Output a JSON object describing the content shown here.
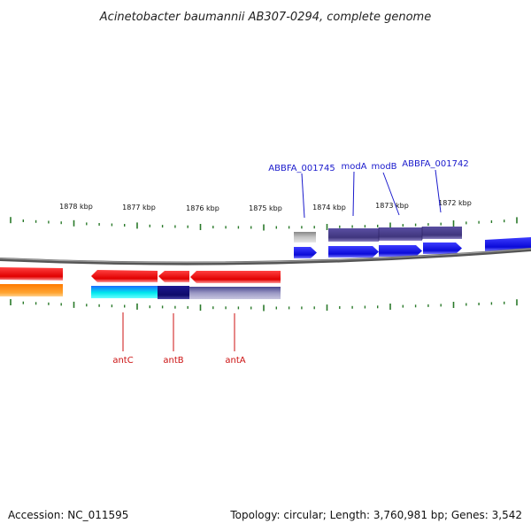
{
  "title": "Acinetobacter baumannii AB307-0294, complete genome",
  "scale_labels": [
    "1878 kbp",
    "1877 kbp",
    "1876 kbp",
    "1875 kbp",
    "1874 kbp",
    "1873 kbp",
    "1872 kbp"
  ],
  "top_gene_labels": [
    "ABBFA_001745",
    "modA",
    "modB",
    "ABBFA_001742"
  ],
  "bottom_gene_labels": [
    "antC",
    "antB",
    "antA"
  ],
  "footer": {
    "accession": "Accession: NC_011595",
    "stats": "Topology: circular; Length: 3,760,981 bp; Genes: 3,542"
  },
  "colors": {
    "forward_cds": "#1111ee",
    "forward_cluster": "#4a3f8f",
    "reverse_cds": "#ee1111",
    "reverse_dark": "#16117a",
    "reverse_gray": "#8a87b5",
    "cyan": "#11dddd",
    "orange": "#ff9922",
    "pseudo": "#bbbbbb",
    "backbone": "#777777",
    "ticks": "#2a7a2a",
    "top_label": "#1a1acc",
    "bottom_label": "#cc1111"
  }
}
